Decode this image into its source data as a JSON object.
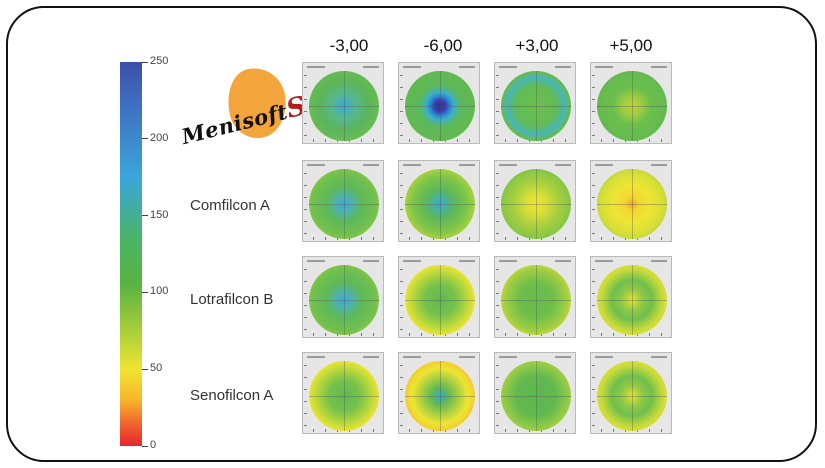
{
  "columns": [
    "-3,00",
    "-6,00",
    "+3,00",
    "+5,00"
  ],
  "rows": [
    {
      "label": "",
      "logo": true
    },
    {
      "label": "Comfilcon A"
    },
    {
      "label": "Lotrafilcon B"
    },
    {
      "label": "Senofilcon A"
    }
  ],
  "logo": {
    "text": "Menisoft",
    "suffix": "S",
    "color": "#f3a43a"
  },
  "scale": {
    "min": 0,
    "max": 250,
    "ticks": [
      "250",
      "200",
      "150",
      "100",
      "50",
      "0"
    ],
    "colors": [
      "#3b4fa8",
      "#3aa6dc",
      "#59b340",
      "#f0e531",
      "#e8262c"
    ]
  },
  "maps": [
    [
      "mid-blue",
      "blue-center",
      "teal-ring",
      "yellow-green-center"
    ],
    [
      "cyan-center",
      "cyan-center-strong",
      "yellow-center",
      "orange-center"
    ],
    [
      "cyan-center",
      "yellow-ring",
      "green-yellow",
      "yellow-ring-strong"
    ],
    [
      "yellow-ring",
      "orange-ring",
      "green-edge",
      "yellow-ring-strong"
    ]
  ]
}
